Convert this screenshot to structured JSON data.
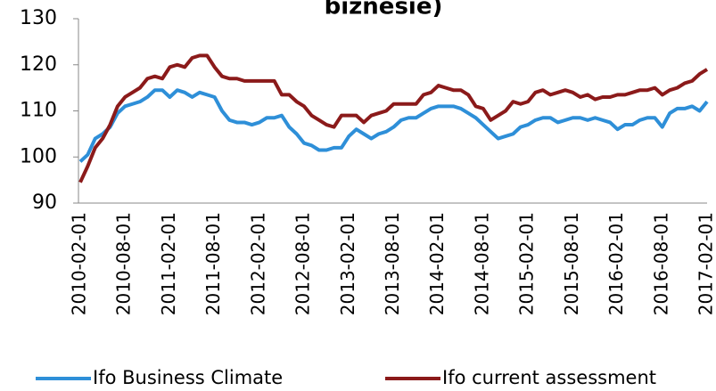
{
  "chart_data": {
    "type": "line",
    "title": "biznesie)",
    "categories": [
      "2010-02-01",
      null,
      null,
      null,
      null,
      null,
      "2010-08-01",
      null,
      null,
      null,
      null,
      null,
      "2011-02-01",
      null,
      null,
      null,
      null,
      null,
      "2011-08-01",
      null,
      null,
      null,
      null,
      null,
      "2012-02-01",
      null,
      null,
      null,
      null,
      null,
      "2012-08-01",
      null,
      null,
      null,
      null,
      null,
      "2013-02-01",
      null,
      null,
      null,
      null,
      null,
      "2013-08-01",
      null,
      null,
      null,
      null,
      null,
      "2014-02-01",
      null,
      null,
      null,
      null,
      null,
      "2014-08-01",
      null,
      null,
      null,
      null,
      null,
      "2015-02-01",
      null,
      null,
      null,
      null,
      null,
      "2015-08-01",
      null,
      null,
      null,
      null,
      null,
      "2016-02-01",
      null,
      null,
      null,
      null,
      null,
      "2016-08-01",
      null,
      null,
      null,
      null,
      null,
      "2017-02-01"
    ],
    "series": [
      {
        "name": "Ifo Business Climate",
        "color": "#2e8fd8",
        "values": [
          99,
          100.5,
          104,
          105,
          106.5,
          109.5,
          111,
          111.5,
          112,
          113,
          114.5,
          114.5,
          113,
          114.5,
          114,
          113,
          114,
          113.5,
          113,
          110,
          108,
          107.5,
          107.5,
          107,
          107.5,
          108.5,
          108.5,
          109,
          106.5,
          105,
          103,
          102.5,
          101.5,
          101.5,
          102,
          102,
          104.5,
          106,
          105,
          104,
          105,
          105.5,
          106.5,
          108,
          108.5,
          108.5,
          109.5,
          110.5,
          111,
          111,
          111,
          110.5,
          109.5,
          108.5,
          107,
          105.5,
          104,
          104.5,
          105,
          106.5,
          107,
          108,
          108.5,
          108.5,
          107.5,
          108,
          108.5,
          108.5,
          108,
          108.5,
          108,
          107.5,
          106,
          107,
          107,
          108,
          108.5,
          108.5,
          106.5,
          109.5,
          110.5,
          110.5,
          111,
          110,
          112
        ]
      },
      {
        "name": "Ifo current assessment",
        "color": "#8b1a1a",
        "values": [
          94.5,
          98,
          102,
          104,
          107,
          111,
          113,
          114,
          115,
          117,
          117.5,
          117,
          119.5,
          120,
          119.5,
          121.5,
          122,
          122,
          119.5,
          117.5,
          117,
          117,
          116.5,
          116.5,
          116.5,
          116.5,
          116.5,
          113.5,
          113.5,
          112,
          111,
          109,
          108,
          107,
          106.5,
          109,
          109,
          109,
          107.5,
          109,
          109.5,
          110,
          111.5,
          111.5,
          111.5,
          111.5,
          113.5,
          114,
          115.5,
          115,
          114.5,
          114.5,
          113.5,
          111,
          110.5,
          108,
          109,
          110,
          112,
          111.5,
          112,
          114,
          114.5,
          113.5,
          114,
          114.5,
          114,
          113,
          113.5,
          112.5,
          113,
          113,
          113.5,
          113.5,
          114,
          114.5,
          114.5,
          115,
          113.5,
          114.5,
          115,
          116,
          116.5,
          118,
          119
        ]
      }
    ],
    "ylim": [
      90,
      130
    ],
    "yticks": [
      90,
      100,
      110,
      120,
      130
    ],
    "legend": "bottom"
  }
}
